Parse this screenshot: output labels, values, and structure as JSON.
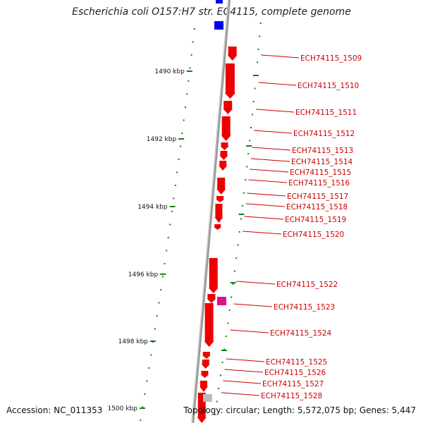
{
  "title": "Escherichia coli O157:H7 str. EC4115, complete genome",
  "footer": {
    "accession_label": "Accession: ",
    "accession": "NC_011353",
    "topology_label": "Topology: ",
    "topology": "circular",
    "length_label": "; Length: ",
    "length": "5,572,075 bp",
    "genes_label": "; Genes: ",
    "genes": "5,447"
  },
  "colors": {
    "gene": "#ee0000",
    "highlight": "#dd1188",
    "top_feature": "#0000ee",
    "pseudo": "#bbbbbb",
    "tick": "#1a7a1a",
    "backbone": "#888888",
    "label": "#cc0000"
  },
  "scale_labels": [
    "1490 kbp",
    "1492 kbp",
    "1494 kbp",
    "1496 kbp",
    "1498 kbp",
    "1500 kbp"
  ],
  "genes": [
    "ECH74115_1509",
    "ECH74115_1510",
    "ECH74115_1511",
    "ECH74115_1512",
    "ECH74115_1513",
    "ECH74115_1514",
    "ECH74115_1515",
    "ECH74115_1516",
    "ECH74115_1517",
    "ECH74115_1518",
    "ECH74115_1519",
    "ECH74115_1520",
    "ECH74115_1522",
    "ECH74115_1523",
    "ECH74115_1524",
    "ECH74115_1525",
    "ECH74115_1526",
    "ECH74115_1527",
    "ECH74115_1528"
  ]
}
